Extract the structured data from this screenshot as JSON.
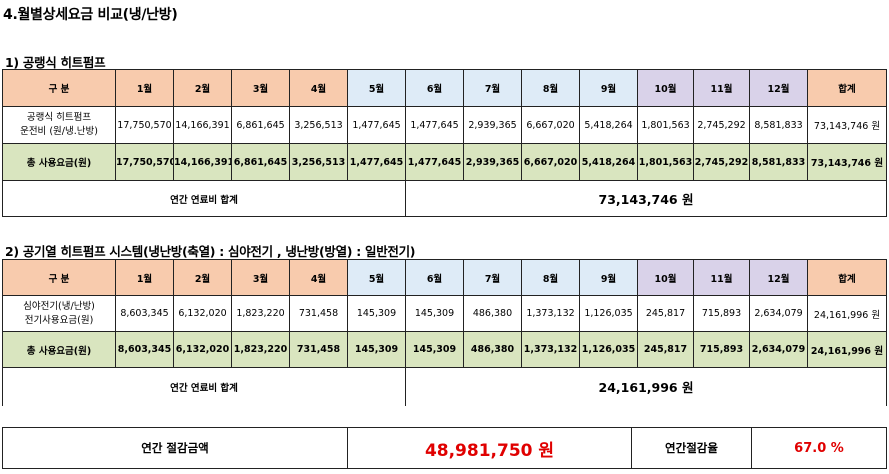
{
  "title": "4.월별상세요금 비교(냉/난방)",
  "section1": {
    "heading": "1) 공랭식 히트펌프",
    "header": [
      "구 분",
      "1월",
      "2월",
      "3월",
      "4월",
      "5월",
      "6월",
      "7월",
      "8월",
      "9월",
      "10월",
      "11월",
      "12월",
      "합계"
    ],
    "row1_label_line1": "공랭식 히트펌프",
    "row1_label_line2": "운전비 (원/냉.난방)",
    "row1": [
      "17,750,570",
      "14,166,391",
      "6,861,645",
      "3,256,513",
      "1,477,645",
      "1,477,645",
      "2,939,365",
      "6,667,020",
      "5,418,264",
      "1,801,563",
      "2,745,292",
      "8,581,833",
      "73,143,746 원"
    ],
    "row2_label": "총 사용요금(원)",
    "row2": [
      "17,750,570",
      "14,166,391",
      "6,861,645",
      "3,256,513",
      "1,477,645",
      "1,477,645",
      "2,939,365",
      "6,667,020",
      "5,418,264",
      "1,801,563",
      "2,745,292",
      "8,581,833",
      "73,143,746 원"
    ],
    "total_label": "연간 연료비 합계",
    "total_value": "73,143,746 원"
  },
  "section2": {
    "heading": "2) 공기열 히트펌프 시스템(냉난방(축열) : 심야전기 , 냉난방(방열) : 일반전기)",
    "header": [
      "구 분",
      "1월",
      "2월",
      "3월",
      "4월",
      "5월",
      "6월",
      "7월",
      "8월",
      "9월",
      "10월",
      "11월",
      "12월",
      "합계"
    ],
    "row1_label_line1": "심야전기(냉/난방)",
    "row1_label_line2": "전기사용요금(원)",
    "row1": [
      "8,603,345",
      "6,132,020",
      "1,823,220",
      "731,458",
      "145,309",
      "145,309",
      "486,380",
      "1,373,132",
      "1,126,035",
      "245,817",
      "715,893",
      "2,634,079",
      "24,161,996 원"
    ],
    "row2_label": "총 사용요금(원)",
    "row2": [
      "8,603,345",
      "6,132,020",
      "1,823,220",
      "731,458",
      "145,309",
      "145,309",
      "486,380",
      "1,373,132",
      "1,126,035",
      "245,817",
      "715,893",
      "2,634,079",
      "24,161,996 원"
    ],
    "total_label": "연간 연료비 합계",
    "total_value": "24,161,996 원"
  },
  "summary": {
    "savings_label": "연간 절감금액",
    "savings_value": "48,981,750 원",
    "rate_label": "연간절감율",
    "rate_value": "67.0 %"
  },
  "colors": {
    "header_orange": "#f8cbad",
    "header_blue": "#deebf7",
    "header_purple": "#d9d2e9",
    "total_row_green": "#d9e5bf",
    "highlight_red": "#e00000"
  }
}
